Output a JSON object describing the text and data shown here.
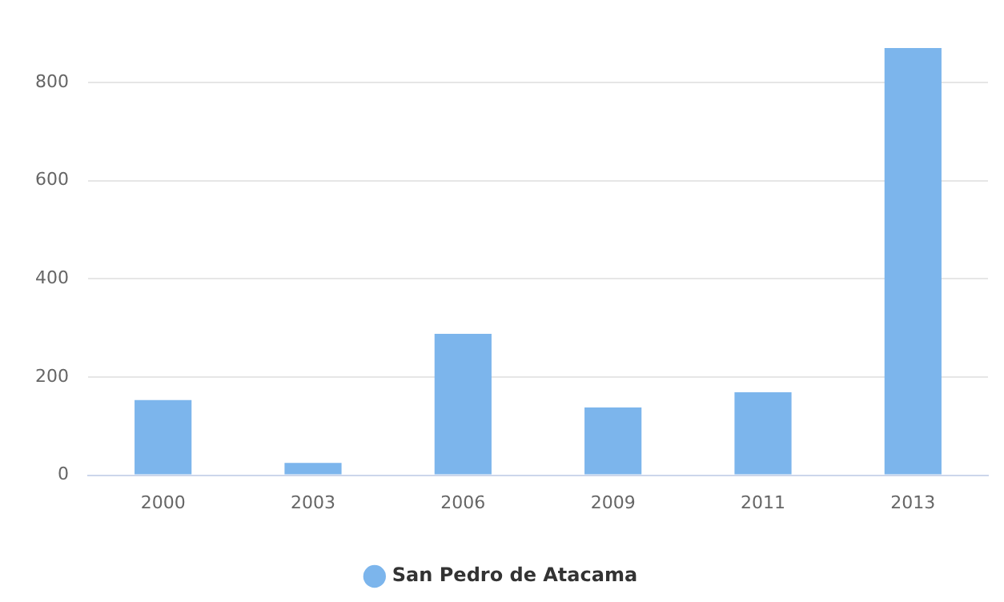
{
  "chart_data": {
    "type": "bar",
    "categories": [
      "2000",
      "2003",
      "2006",
      "2009",
      "2011",
      "2013"
    ],
    "series": [
      {
        "name": "San Pedro de Atacama",
        "color": "#7cb5ec",
        "values": [
          153,
          25,
          288,
          138,
          169,
          870
        ]
      }
    ],
    "ylim": [
      0,
      870
    ],
    "yticks": [
      0,
      200,
      400,
      600,
      800
    ],
    "grid": "y",
    "legend": "bottom"
  }
}
